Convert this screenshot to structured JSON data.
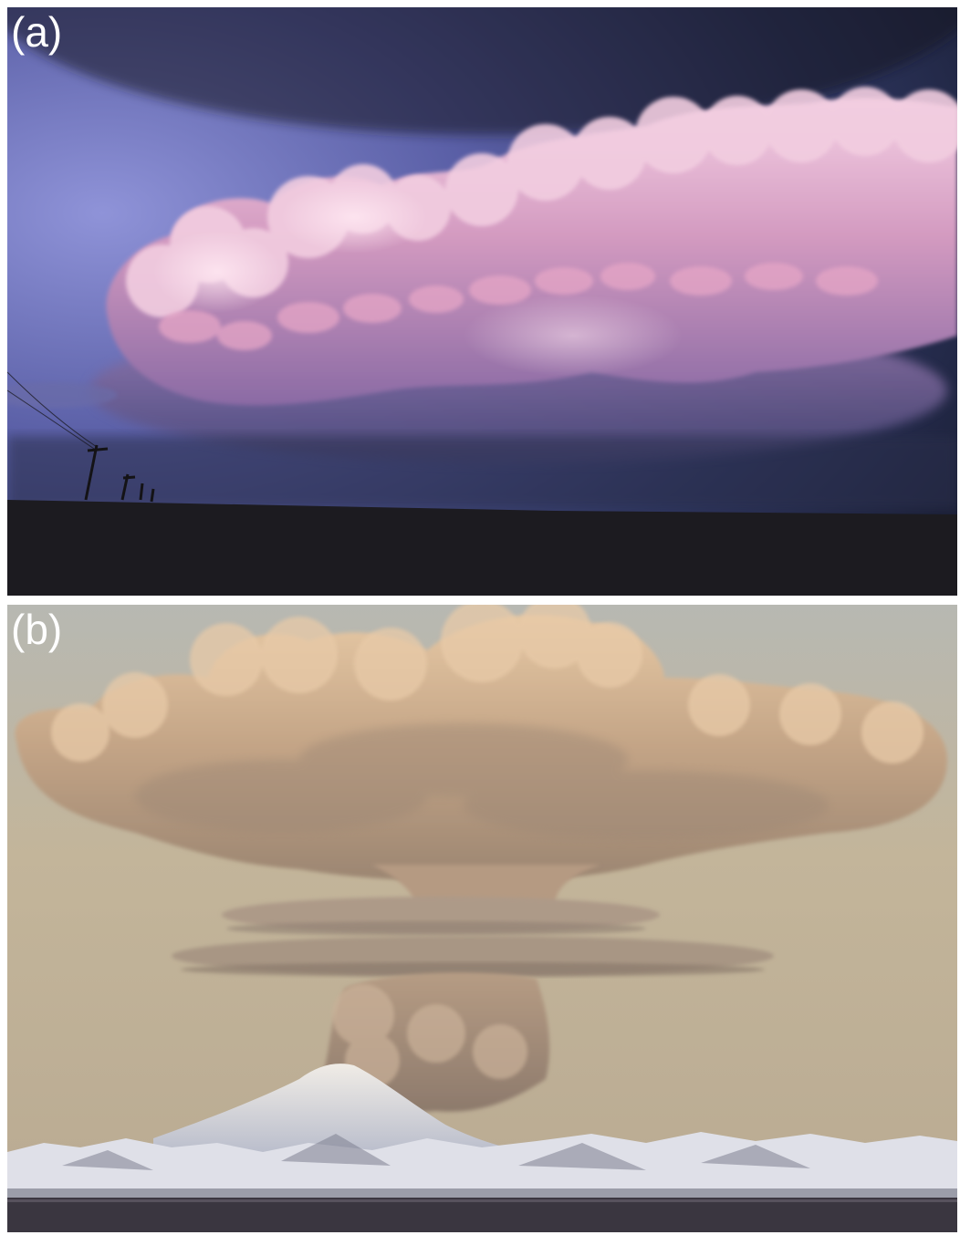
{
  "panels": [
    {
      "label": "(a)"
    },
    {
      "label": "(b)"
    }
  ],
  "colors": {
    "background": "#ffffff",
    "label": "#ffffff",
    "sky_a_top": "#2b2f54",
    "sky_a_left": "#7c82c8",
    "cloud_a": "#d8a8c8",
    "ground_a": "#1c1b20",
    "sky_b": "#c3b59a",
    "plume_b": "#c9a886",
    "snow_b": "#e6e6ec",
    "water_b": "#3a3640"
  }
}
